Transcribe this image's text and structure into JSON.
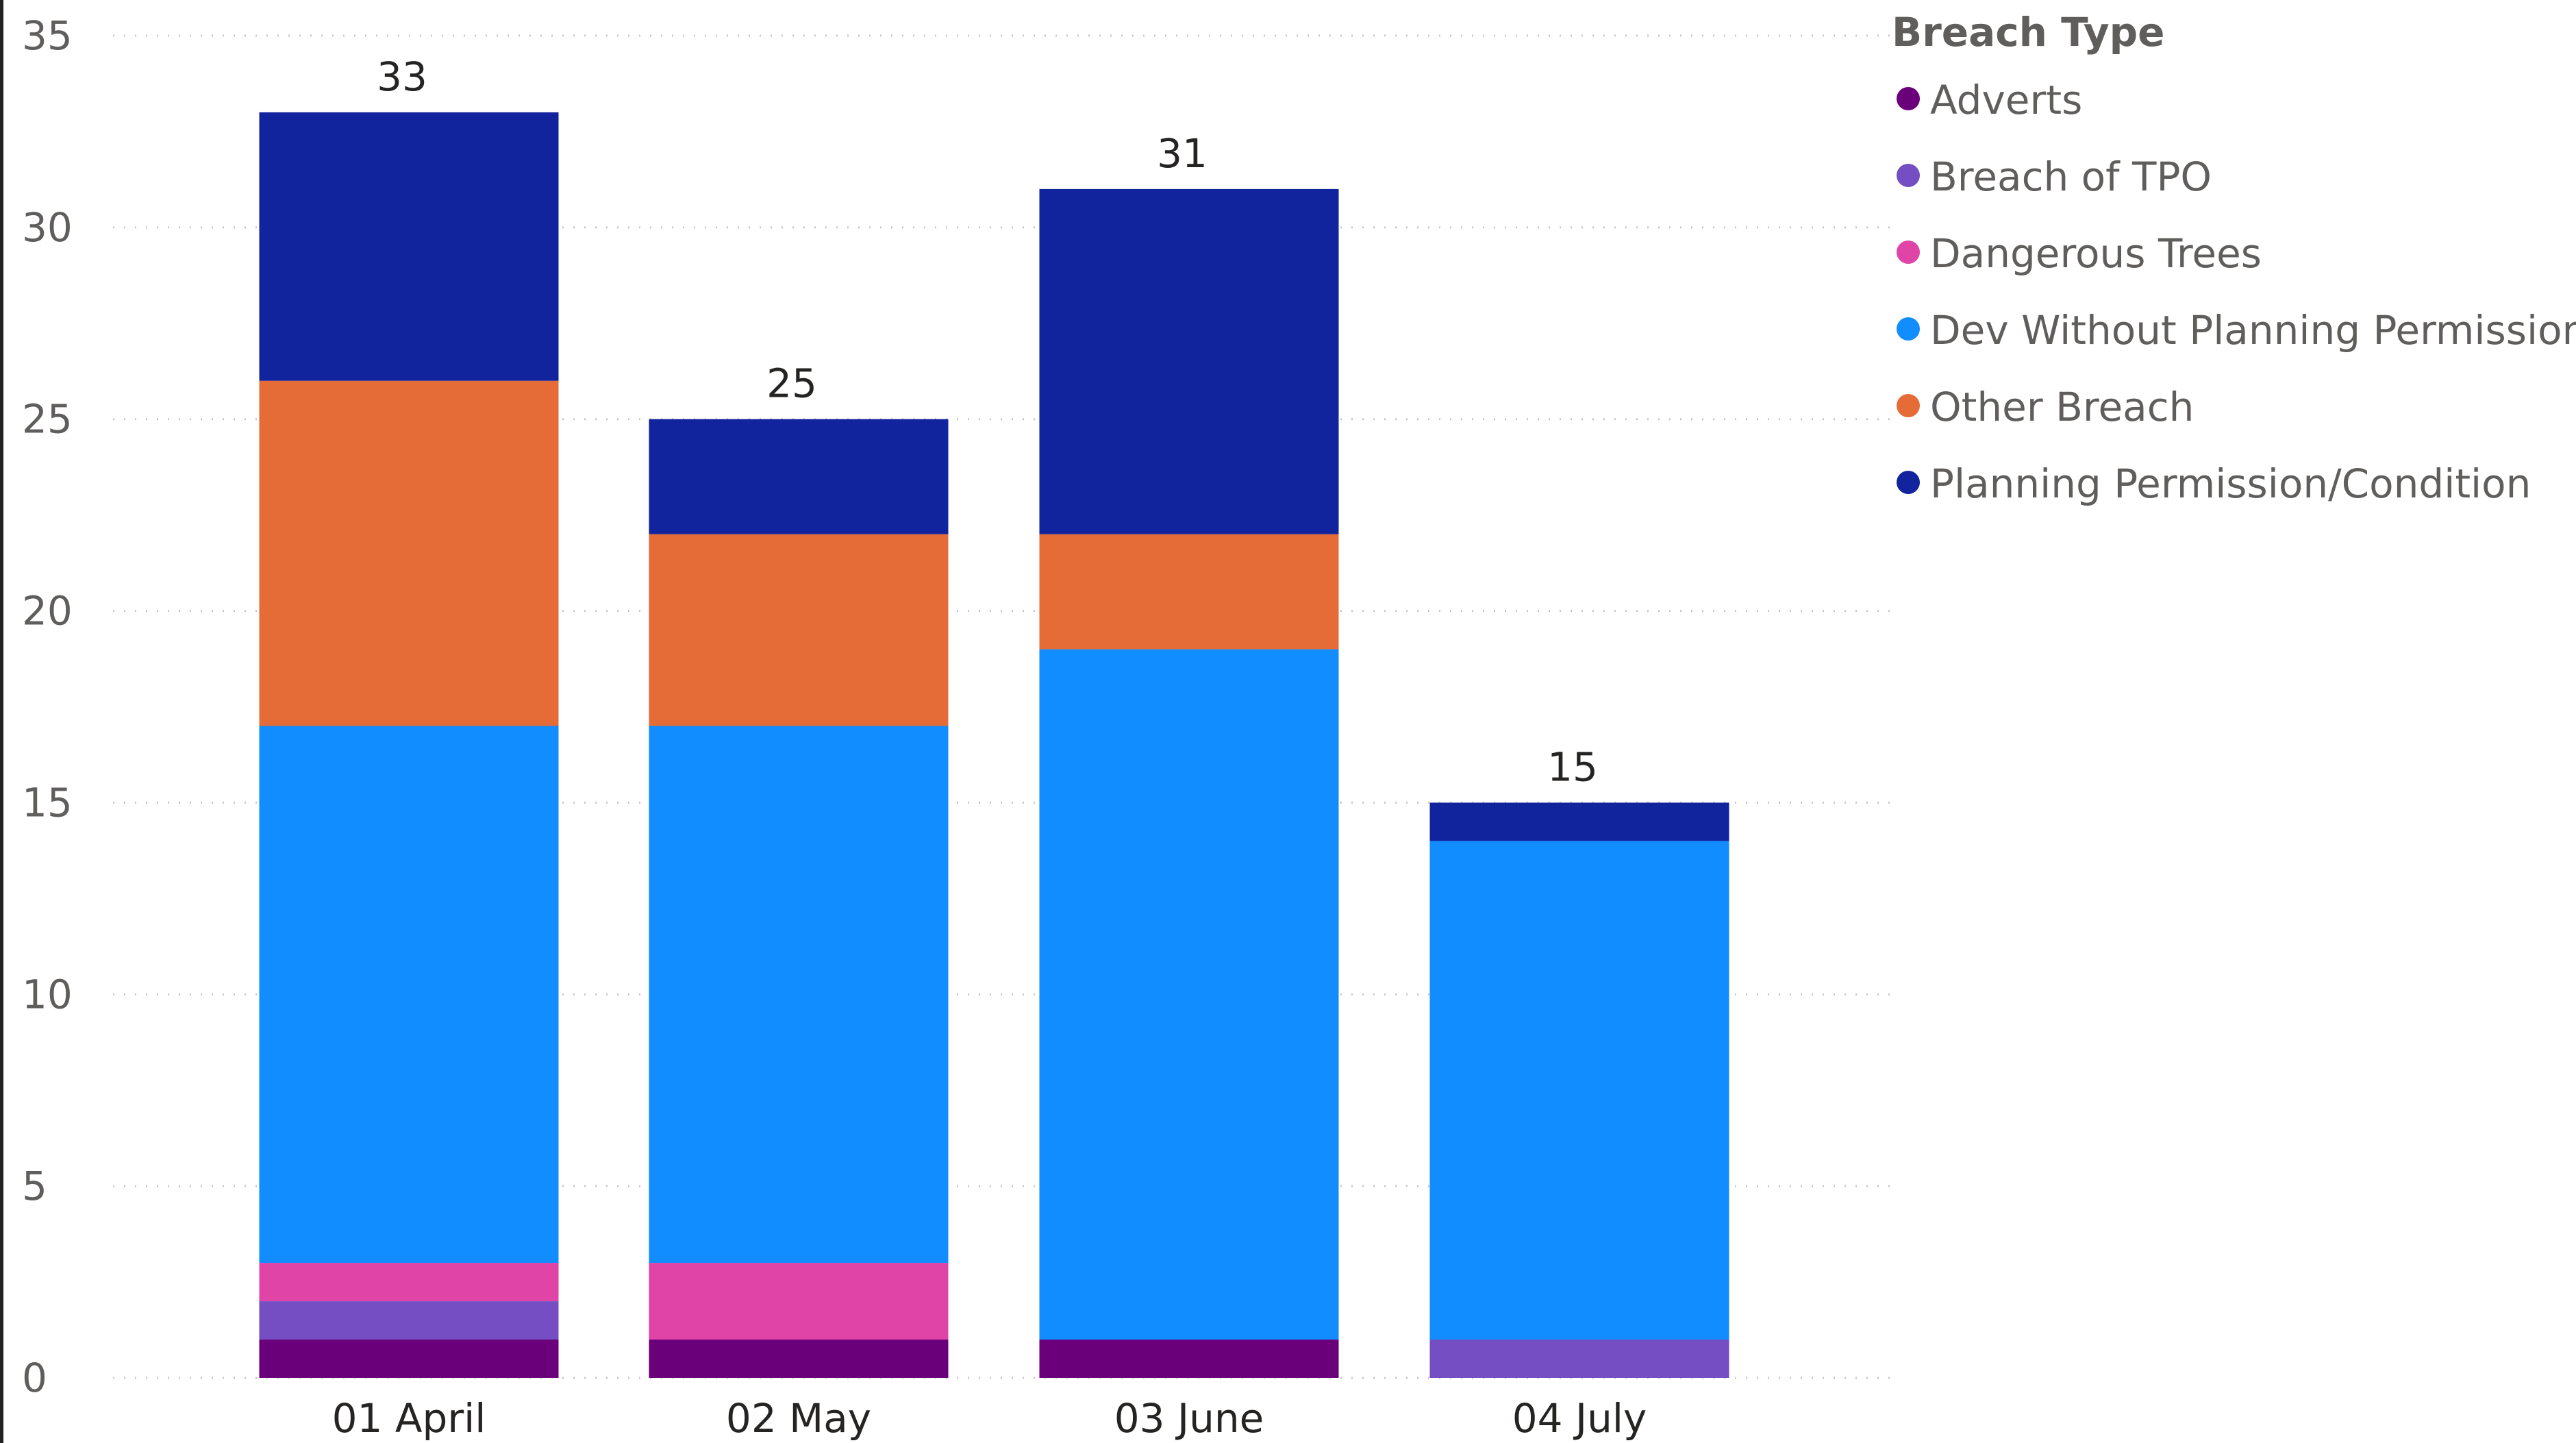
{
  "chart_data": {
    "type": "bar",
    "stacked": true,
    "categories": [
      "01 April",
      "02 May",
      "03 June",
      "04 July"
    ],
    "series": [
      {
        "name": "Adverts",
        "color": "#6B007B",
        "values": [
          1,
          1,
          1,
          0
        ]
      },
      {
        "name": "Breach of TPO",
        "color": "#744EC2",
        "values": [
          1,
          0,
          0,
          1
        ]
      },
      {
        "name": "Dangerous Trees",
        "color": "#E044A7",
        "values": [
          1,
          2,
          0,
          0
        ]
      },
      {
        "name": "Dev Without Planning Permission",
        "color": "#118DFF",
        "values": [
          14,
          14,
          18,
          13
        ]
      },
      {
        "name": "Other Breach",
        "color": "#E66C37",
        "values": [
          9,
          5,
          3,
          0
        ]
      },
      {
        "name": "Planning Permission/Condition",
        "color": "#12239E",
        "values": [
          7,
          3,
          9,
          1
        ]
      }
    ],
    "totals": [
      33,
      25,
      31,
      15
    ],
    "yticks": [
      0,
      5,
      10,
      15,
      20,
      25,
      30,
      35
    ],
    "ylim": [
      0,
      35
    ],
    "grid": true,
    "legend": {
      "title": "Breach Type",
      "position": "right"
    }
  }
}
